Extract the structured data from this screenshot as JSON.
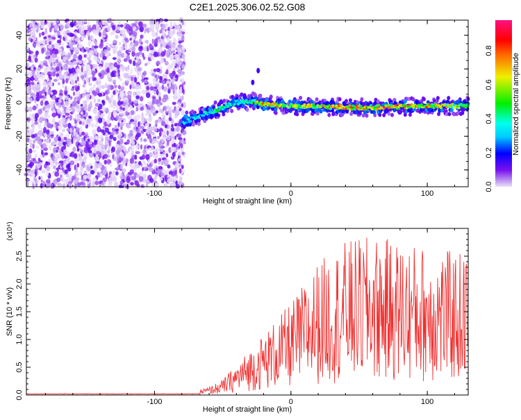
{
  "title": "C2E1.2025.306.02.52.G08",
  "chart_data": [
    {
      "type": "heatmap",
      "xlabel": "Height of straight line (km)",
      "ylabel": "Frequency (Hz)",
      "xlim": [
        -194,
        130
      ],
      "ylim": [
        -50,
        49
      ],
      "xticks": [
        {
          "v": -100,
          "label": "-100"
        },
        {
          "v": 0,
          "label": "0"
        },
        {
          "v": 100,
          "label": "100"
        }
      ],
      "yticks": [
        {
          "v": -40,
          "label": "-40"
        },
        {
          "v": -20,
          "label": "-20"
        },
        {
          "v": 0,
          "label": "0"
        },
        {
          "v": 20,
          "label": "20"
        },
        {
          "v": 40,
          "label": "40"
        }
      ],
      "noise_region_x": [
        -194,
        -78
      ],
      "ridge": {
        "x": [
          -80,
          -70,
          -60,
          -50,
          -40,
          -30,
          -25,
          -20,
          0,
          50,
          100,
          130
        ],
        "freq": [
          -12,
          -9,
          -6,
          -3,
          0,
          1,
          0,
          -1,
          -2,
          -3,
          -2,
          -2
        ],
        "amplitude": [
          0.35,
          0.4,
          0.45,
          0.5,
          0.45,
          0.5,
          0.7,
          0.8,
          0.75,
          0.8,
          0.8,
          0.6
        ]
      },
      "spur": {
        "x": [
          -34,
          -28,
          -24
        ],
        "freq": [
          4,
          12,
          19
        ]
      },
      "colorbar": {
        "label": "Normalized spectral amplitude",
        "range": [
          0,
          0.98
        ],
        "ticks": [
          {
            "v": 0,
            "label": "0.0"
          },
          {
            "v": 0.2,
            "label": "0.2"
          },
          {
            "v": 0.4,
            "label": "0.4"
          },
          {
            "v": 0.6,
            "label": "0.6"
          },
          {
            "v": 0.8,
            "label": "0.8"
          }
        ]
      }
    },
    {
      "type": "line",
      "xlabel": "Height of straight line (km)",
      "ylabel": "SNR (10 * v/v)",
      "yscale_label": "(x10⁴)",
      "xlim": [
        -194,
        130
      ],
      "ylim": [
        0,
        3
      ],
      "xticks": [
        {
          "v": -100,
          "label": "-100"
        },
        {
          "v": 0,
          "label": "0"
        },
        {
          "v": 100,
          "label": "100"
        }
      ],
      "yticks": [
        {
          "v": 0,
          "label": "0.0"
        },
        {
          "v": 0.5,
          "label": "0.5"
        },
        {
          "v": 1,
          "label": "1.0"
        },
        {
          "v": 1.5,
          "label": "1.5"
        },
        {
          "v": 2,
          "label": "2.0"
        },
        {
          "v": 2.5,
          "label": "2.5"
        }
      ],
      "series": [
        {
          "name": "SNR",
          "color": "#f03030",
          "trend_x": [
            -194,
            -75,
            -60,
            -50,
            -40,
            -30,
            -20,
            -10,
            0,
            20,
            40,
            60,
            80,
            100,
            120,
            130
          ],
          "trend_mean": [
            0.02,
            0.02,
            0.08,
            0.15,
            0.3,
            0.45,
            0.6,
            0.75,
            0.9,
            1.3,
            1.5,
            1.55,
            1.5,
            1.45,
            1.4,
            1.4
          ],
          "peak": 2.95
        }
      ]
    }
  ]
}
